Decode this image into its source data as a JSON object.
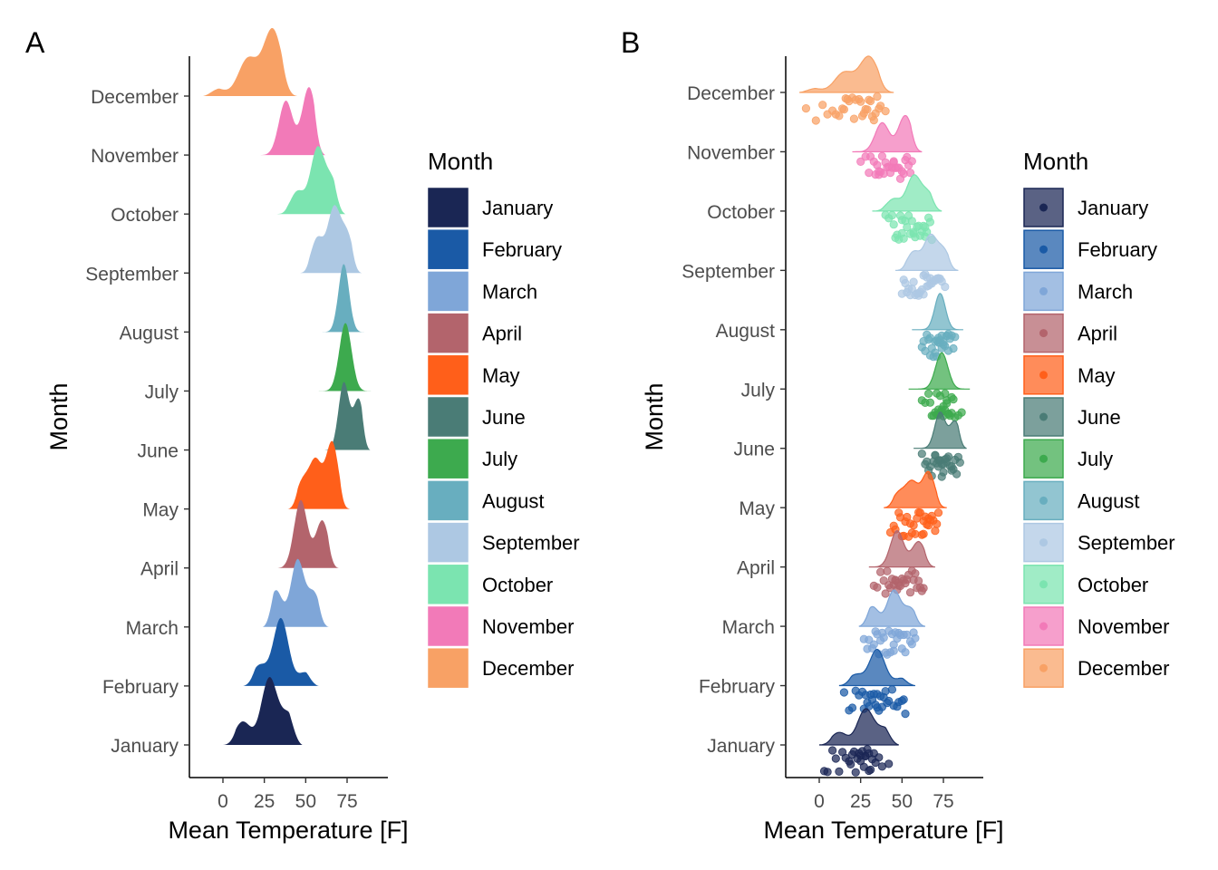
{
  "figure": {
    "months": [
      "January",
      "February",
      "March",
      "April",
      "May",
      "June",
      "July",
      "August",
      "September",
      "October",
      "November",
      "December"
    ],
    "colors": {
      "January": "#1a2654",
      "February": "#1a5aa6",
      "March": "#7fa6d8",
      "April": "#b3646c",
      "May": "#ff5f1a",
      "June": "#4a7c76",
      "July": "#3daa4e",
      "August": "#68aebf",
      "September": "#adc8e3",
      "October": "#7be4b0",
      "November": "#f27ab8",
      "December": "#f8a165"
    }
  },
  "chart_data": [
    {
      "panel_tag": "A",
      "type": "area",
      "subtype": "ridgeline density",
      "xlabel": "Mean Temperature [F]",
      "ylabel": "Month",
      "x_ticks": [
        0,
        25,
        50,
        75
      ],
      "xlim": [
        -20,
        100
      ],
      "categories": [
        "January",
        "February",
        "March",
        "April",
        "May",
        "June",
        "July",
        "August",
        "September",
        "October",
        "November",
        "December"
      ],
      "series": [
        {
          "name": "January",
          "min": 0,
          "max": 48,
          "peaks": [
            [
              12,
              0.35
            ],
            [
              28,
              1.0
            ],
            [
              40,
              0.45
            ]
          ]
        },
        {
          "name": "February",
          "min": 12,
          "max": 58,
          "peaks": [
            [
              22,
              0.3
            ],
            [
              35,
              1.0
            ],
            [
              50,
              0.2
            ]
          ]
        },
        {
          "name": "March",
          "min": 24,
          "max": 64,
          "peaks": [
            [
              32,
              0.55
            ],
            [
              45,
              1.0
            ],
            [
              55,
              0.5
            ]
          ]
        },
        {
          "name": "April",
          "min": 30,
          "max": 70,
          "peaks": [
            [
              47,
              1.0
            ],
            [
              60,
              0.7
            ]
          ]
        },
        {
          "name": "May",
          "min": 39,
          "max": 77,
          "peaks": [
            [
              48,
              0.4
            ],
            [
              56,
              0.7
            ],
            [
              66,
              1.0
            ]
          ]
        },
        {
          "name": "June",
          "min": 57,
          "max": 89,
          "peaks": [
            [
              73,
              1.0
            ],
            [
              82,
              0.75
            ]
          ]
        },
        {
          "name": "July",
          "min": 54,
          "max": 91,
          "peaks": [
            [
              74,
              1.0
            ]
          ]
        },
        {
          "name": "August",
          "min": 56,
          "max": 87,
          "peaks": [
            [
              73,
              1.0
            ]
          ]
        },
        {
          "name": "September",
          "min": 46,
          "max": 84,
          "peaks": [
            [
              57,
              0.55
            ],
            [
              67,
              1.0
            ],
            [
              75,
              0.6
            ]
          ]
        },
        {
          "name": "October",
          "min": 32,
          "max": 74,
          "peaks": [
            [
              45,
              0.35
            ],
            [
              57,
              1.0
            ],
            [
              66,
              0.5
            ]
          ]
        },
        {
          "name": "November",
          "min": 20,
          "max": 62,
          "peaks": [
            [
              38,
              0.8
            ],
            [
              52,
              1.0
            ]
          ]
        },
        {
          "name": "December",
          "min": -12,
          "max": 45,
          "peaks": [
            [
              -5,
              0.12
            ],
            [
              15,
              0.55
            ],
            [
              30,
              1.0
            ]
          ]
        }
      ],
      "legend": {
        "title": "Month",
        "position": "right"
      }
    },
    {
      "panel_tag": "B",
      "type": "scatter",
      "subtype": "half-density with jittered points (raincloud)",
      "xlabel": "Mean Temperature [F]",
      "ylabel": "Month",
      "x_ticks": [
        0,
        25,
        50,
        75
      ],
      "xlim": [
        -20,
        100
      ],
      "categories": [
        "January",
        "February",
        "March",
        "April",
        "May",
        "June",
        "July",
        "August",
        "September",
        "October",
        "November",
        "December"
      ],
      "series": [
        {
          "name": "January",
          "min": 0,
          "max": 48,
          "peaks": [
            [
              12,
              0.35
            ],
            [
              28,
              1.0
            ],
            [
              40,
              0.45
            ]
          ],
          "points": [
            3,
            5,
            8,
            10,
            12,
            14,
            16,
            18,
            19,
            20,
            21,
            22,
            23,
            24,
            25,
            25,
            26,
            27,
            28,
            28,
            29,
            30,
            30,
            31,
            32,
            33,
            34,
            36,
            38,
            42
          ]
        },
        {
          "name": "February",
          "min": 12,
          "max": 58,
          "peaks": [
            [
              22,
              0.3
            ],
            [
              35,
              1.0
            ],
            [
              50,
              0.2
            ]
          ],
          "points": [
            15,
            18,
            20,
            22,
            24,
            26,
            27,
            28,
            29,
            30,
            31,
            32,
            33,
            34,
            35,
            35,
            36,
            37,
            38,
            39,
            40,
            41,
            42,
            44,
            45,
            47,
            48,
            50,
            51,
            52
          ]
        },
        {
          "name": "March",
          "min": 24,
          "max": 64,
          "peaks": [
            [
              32,
              0.55
            ],
            [
              45,
              1.0
            ],
            [
              55,
              0.5
            ]
          ],
          "points": [
            27,
            29,
            30,
            32,
            33,
            34,
            35,
            36,
            37,
            38,
            39,
            40,
            41,
            42,
            43,
            44,
            45,
            45,
            46,
            47,
            48,
            49,
            50,
            51,
            52,
            53,
            55,
            56,
            57,
            58
          ]
        },
        {
          "name": "April",
          "min": 30,
          "max": 70,
          "peaks": [
            [
              47,
              1.0
            ],
            [
              60,
              0.7
            ]
          ],
          "points": [
            33,
            35,
            37,
            39,
            40,
            41,
            42,
            43,
            44,
            45,
            46,
            46,
            47,
            48,
            48,
            49,
            50,
            51,
            52,
            53,
            54,
            55,
            56,
            57,
            58,
            59,
            60,
            61,
            62,
            63
          ]
        },
        {
          "name": "May",
          "min": 39,
          "max": 77,
          "peaks": [
            [
              48,
              0.4
            ],
            [
              56,
              0.7
            ],
            [
              66,
              1.0
            ]
          ],
          "points": [
            43,
            45,
            46,
            48,
            49,
            50,
            51,
            52,
            53,
            54,
            55,
            56,
            57,
            58,
            59,
            60,
            61,
            62,
            63,
            63,
            64,
            65,
            66,
            66,
            67,
            68,
            69,
            70,
            71,
            72
          ]
        },
        {
          "name": "June",
          "min": 57,
          "max": 89,
          "peaks": [
            [
              73,
              1.0
            ],
            [
              82,
              0.75
            ]
          ],
          "points": [
            62,
            64,
            65,
            66,
            67,
            68,
            69,
            70,
            70,
            71,
            72,
            72,
            73,
            73,
            74,
            74,
            75,
            75,
            76,
            77,
            77,
            78,
            79,
            80,
            80,
            81,
            82,
            83,
            84,
            85
          ]
        },
        {
          "name": "July",
          "min": 54,
          "max": 91,
          "peaks": [
            [
              74,
              1.0
            ]
          ],
          "points": [
            62,
            64,
            66,
            67,
            68,
            69,
            70,
            71,
            71,
            72,
            72,
            73,
            73,
            74,
            74,
            75,
            75,
            76,
            76,
            77,
            77,
            78,
            78,
            79,
            80,
            80,
            81,
            82,
            84,
            86
          ]
        },
        {
          "name": "August",
          "min": 56,
          "max": 87,
          "peaks": [
            [
              73,
              1.0
            ]
          ],
          "points": [
            62,
            63,
            64,
            65,
            66,
            67,
            67,
            68,
            69,
            70,
            70,
            71,
            71,
            72,
            72,
            73,
            73,
            74,
            74,
            75,
            75,
            76,
            77,
            77,
            78,
            78,
            79,
            80,
            81,
            82
          ]
        },
        {
          "name": "September",
          "min": 46,
          "max": 84,
          "peaks": [
            [
              57,
              0.55
            ],
            [
              67,
              1.0
            ],
            [
              75,
              0.6
            ]
          ],
          "points": [
            50,
            51,
            52,
            53,
            54,
            55,
            56,
            57,
            58,
            59,
            60,
            60,
            61,
            62,
            63,
            63,
            64,
            65,
            65,
            66,
            67,
            67,
            68,
            69,
            70,
            71,
            72,
            73,
            74,
            76
          ]
        },
        {
          "name": "October",
          "min": 32,
          "max": 74,
          "peaks": [
            [
              45,
              0.35
            ],
            [
              57,
              1.0
            ],
            [
              66,
              0.5
            ]
          ],
          "points": [
            40,
            42,
            44,
            45,
            46,
            47,
            48,
            49,
            50,
            50,
            51,
            52,
            53,
            54,
            55,
            56,
            57,
            57,
            58,
            59,
            60,
            61,
            62,
            63,
            64,
            65,
            66,
            67,
            68,
            64
          ]
        },
        {
          "name": "November",
          "min": 20,
          "max": 62,
          "peaks": [
            [
              38,
              0.8
            ],
            [
              52,
              1.0
            ]
          ],
          "points": [
            25,
            28,
            30,
            31,
            33,
            34,
            35,
            36,
            36,
            37,
            38,
            39,
            40,
            41,
            42,
            43,
            44,
            45,
            45,
            46,
            47,
            48,
            49,
            50,
            51,
            52,
            53,
            54,
            55,
            56
          ]
        },
        {
          "name": "December",
          "min": -12,
          "max": 45,
          "peaks": [
            [
              -5,
              0.12
            ],
            [
              15,
              0.55
            ],
            [
              30,
              1.0
            ]
          ],
          "points": [
            -8,
            -2,
            2,
            5,
            8,
            10,
            12,
            14,
            15,
            16,
            17,
            18,
            20,
            21,
            22,
            24,
            25,
            26,
            27,
            28,
            29,
            30,
            31,
            32,
            33,
            34,
            35,
            36,
            37,
            40
          ]
        }
      ],
      "legend": {
        "title": "Month",
        "position": "right"
      }
    }
  ]
}
